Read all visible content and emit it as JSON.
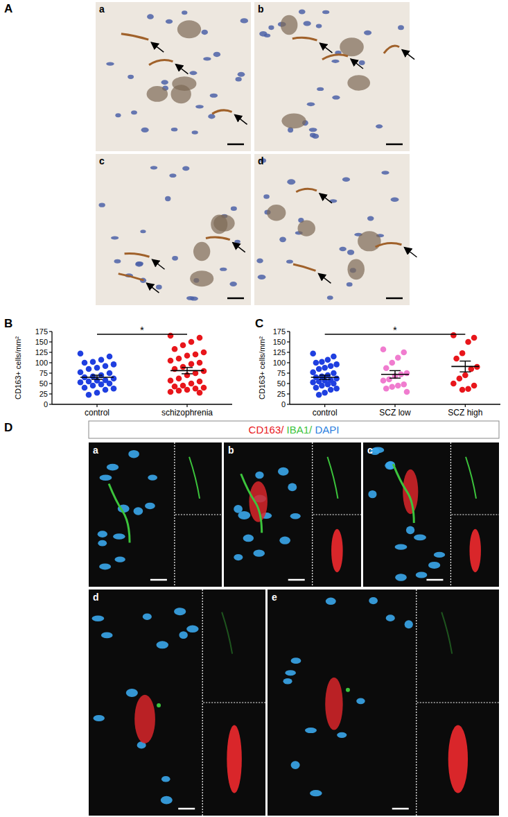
{
  "panel_labels": [
    "A",
    "B",
    "C",
    "D"
  ],
  "a_sublabels": [
    "a",
    "b",
    "c",
    "d"
  ],
  "d_sublabels": [
    "a",
    "b",
    "c",
    "d",
    "e"
  ],
  "d_legend": [
    {
      "text": "CD163/",
      "color": "#e8161b"
    },
    {
      "text": " IBA1/",
      "color": "#3cc43c"
    },
    {
      "text": " DAPI",
      "color": "#2b7fe0"
    }
  ],
  "chart_data": [
    {
      "type": "strip",
      "categories": [
        "control",
        "schizophrenia"
      ],
      "values": [
        [
          122,
          115,
          107,
          102,
          100,
          96,
          92,
          88,
          85,
          77,
          75,
          70,
          67,
          65,
          62,
          58,
          57,
          55,
          53,
          50,
          48,
          45,
          40,
          38,
          35,
          28,
          23
        ],
        [
          165,
          160,
          150,
          142,
          133,
          125,
          120,
          117,
          110,
          105,
          100,
          97,
          90,
          85,
          80,
          75,
          70,
          62,
          57,
          55,
          50,
          45,
          43,
          40,
          38,
          35,
          33,
          30,
          28
        ]
      ],
      "colors": [
        "#1f3fe0",
        "#e8161b"
      ],
      "mean": [
        65,
        81
      ],
      "sem": [
        5,
        7.5
      ],
      "ylabel": "CD163+ cells/mm²",
      "ylim": [
        0,
        175
      ],
      "yticks": [
        0,
        25,
        50,
        75,
        100,
        125,
        150,
        175
      ],
      "annotations": [
        {
          "text": "*",
          "from": "control",
          "to": "schizophrenia"
        }
      ]
    },
    {
      "type": "strip",
      "categories": [
        "control",
        "SCZ low",
        "SCZ high"
      ],
      "values": [
        [
          122,
          115,
          107,
          102,
          100,
          96,
          92,
          88,
          85,
          77,
          75,
          70,
          67,
          65,
          62,
          58,
          57,
          55,
          53,
          50,
          48,
          45,
          40,
          38,
          35,
          28,
          23
        ],
        [
          132,
          125,
          112,
          100,
          87,
          75,
          72,
          68,
          60,
          57,
          48,
          45,
          42,
          38,
          30
        ],
        [
          166,
          160,
          150,
          123,
          110,
          90,
          85,
          70,
          62,
          50,
          45,
          37,
          35
        ]
      ],
      "colors": [
        "#1f3fe0",
        "#f07ccf",
        "#e8161b"
      ],
      "mean": [
        65,
        72,
        91
      ],
      "sem": [
        5,
        9,
        13
      ],
      "ylabel": "CD163+ cells/mm²",
      "ylim": [
        0,
        175
      ],
      "yticks": [
        0,
        25,
        50,
        75,
        100,
        125,
        150,
        175
      ],
      "annotations": [
        {
          "text": "*",
          "from": "control",
          "to": "SCZ high"
        }
      ]
    }
  ]
}
